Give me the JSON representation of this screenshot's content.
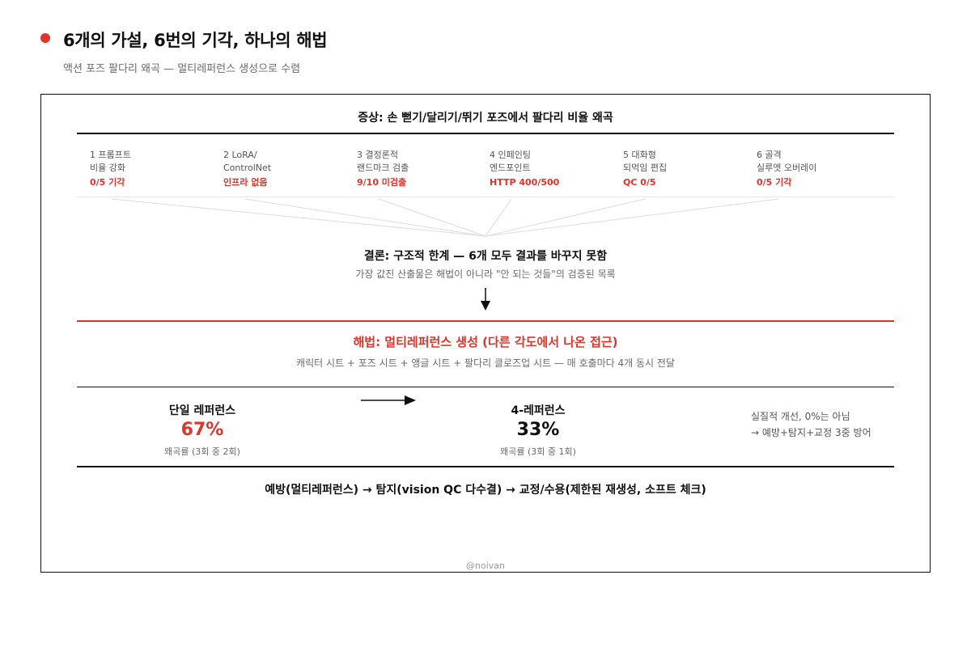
{
  "header": {
    "title": "6개의 가설, 6번의 기각, 하나의 해법",
    "subtitle": "액션 포즈 팔다리 왜곡 — 멀티레퍼런스 생성으로 수렴"
  },
  "symptom": "증상: 손 뻗기/달리기/뛰기 포즈에서 팔다리 비율 왜곡",
  "attempts": [
    {
      "title": "1 프롬프트",
      "detail": "비율 강화",
      "result": "0/5 기각"
    },
    {
      "title": "2 LoRA/",
      "detail": "ControlNet",
      "result": "인프라 없음"
    },
    {
      "title": "3 결정론적",
      "detail": "랜드마크 검출",
      "result": "9/10 미검출"
    },
    {
      "title": "4 인페인팅",
      "detail": "엔드포인트",
      "result": "HTTP 400/500"
    },
    {
      "title": "5 대화형",
      "detail": "되먹임 편집",
      "result": "QC 0/5"
    },
    {
      "title": "6 골격",
      "detail": "실루엣 오버레이",
      "result": "0/5 기각"
    }
  ],
  "conclusion": {
    "title": "결론: 구조적 한계 — 6개 모두 결과를 바꾸지 못함",
    "subtitle": "가장 값진 산출물은 해법이 아니라 \"안 되는 것들\"의 검증된 목록"
  },
  "solution": {
    "title": "해법: 멀티레퍼런스 생성 (다른 각도에서 나온 접근)",
    "subtitle": "캐릭터 시트 + 포즈 시트 + 앵글 시트 + 팔다리 클로즈업 시트 — 매 호출마다 4개 동시 전달"
  },
  "comparison": {
    "before": {
      "label": "단일 레퍼런스",
      "value": "67%",
      "note": "왜곡률 (3회 중 2회)"
    },
    "after": {
      "label": "4-레퍼런스",
      "value": "33%",
      "note": "왜곡률 (3회 중 1회)"
    },
    "note_line1": "실질적 개선, 0%는 아님",
    "note_line2": "→ 예방+탐지+교정 3중 방어"
  },
  "pipeline": "예방(멀티레퍼런스) → 탐지(vision QC 다수결) → 교정/수용(제한된 재생성, 소프트 체크)",
  "credit": "@noivan",
  "colors": {
    "accent": "#e0342a",
    "text": "#111111",
    "muted": "#6b6b6b"
  }
}
